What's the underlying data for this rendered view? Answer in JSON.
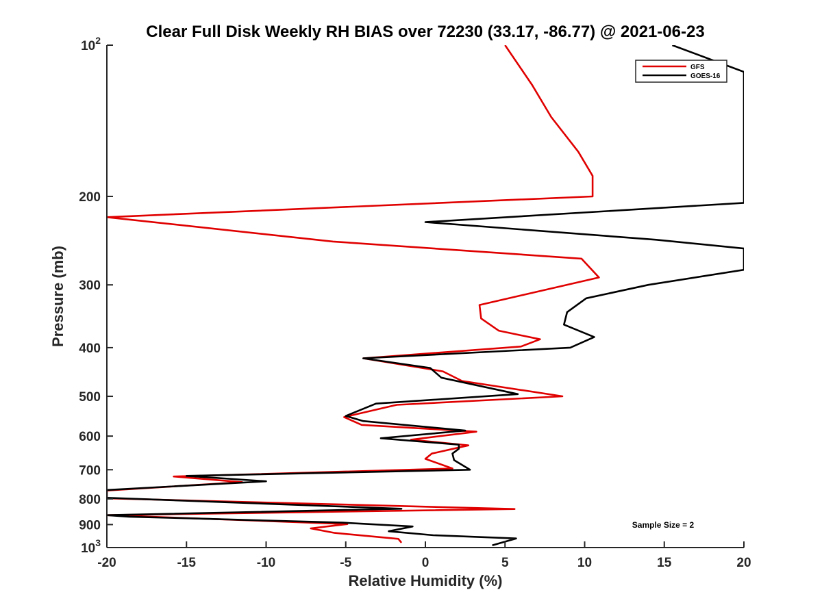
{
  "chart_data": {
    "type": "line",
    "title": "Clear Full Disk Weekly RH BIAS over 72230 (33.17, -86.77) @ 2021-06-23",
    "xlabel": "Relative Humidity (%)",
    "ylabel": "Pressure (mb)",
    "xlim": [
      -20,
      20
    ],
    "ylim": [
      100,
      1000
    ],
    "y_scale": "log",
    "y_reversed": true,
    "grid": false,
    "legend_position": "top-right",
    "x_ticks": [
      {
        "value": -20,
        "label": "-20"
      },
      {
        "value": -15,
        "label": "-15"
      },
      {
        "value": -10,
        "label": "-10"
      },
      {
        "value": -5,
        "label": "-5"
      },
      {
        "value": 0,
        "label": "0"
      },
      {
        "value": 5,
        "label": "5"
      },
      {
        "value": 10,
        "label": "10"
      },
      {
        "value": 15,
        "label": "15"
      },
      {
        "value": 20,
        "label": "20"
      }
    ],
    "y_ticks": [
      {
        "value": 100,
        "base": "10",
        "exp": "2"
      },
      {
        "value": 200,
        "label": "200"
      },
      {
        "value": 300,
        "label": "300"
      },
      {
        "value": 400,
        "label": "400"
      },
      {
        "value": 500,
        "label": "500"
      },
      {
        "value": 600,
        "label": "600"
      },
      {
        "value": 700,
        "label": "700"
      },
      {
        "value": 800,
        "label": "800"
      },
      {
        "value": 900,
        "label": "900"
      },
      {
        "value": 1000,
        "base": "10",
        "exp": "3"
      }
    ],
    "series": [
      {
        "name": "GFS",
        "color": "#e00000",
        "points": [
          [
            5.0,
            100
          ],
          [
            6.7,
            120
          ],
          [
            7.9,
            139
          ],
          [
            9.6,
            163
          ],
          [
            10.5,
            182
          ],
          [
            10.5,
            200
          ],
          [
            -20.0,
            220
          ],
          [
            -5.8,
            246
          ],
          [
            9.8,
            266
          ],
          [
            10.9,
            290
          ],
          [
            3.4,
            329
          ],
          [
            3.5,
            350
          ],
          [
            4.6,
            370
          ],
          [
            7.2,
            385
          ],
          [
            6.0,
            398
          ],
          [
            -3.9,
            420
          ],
          [
            1.1,
            446
          ],
          [
            2.3,
            466
          ],
          [
            8.6,
            500
          ],
          [
            -1.8,
            520
          ],
          [
            -5.1,
            550
          ],
          [
            -4.0,
            570
          ],
          [
            3.2,
            588
          ],
          [
            -0.9,
            610
          ],
          [
            2.7,
            626
          ],
          [
            0.4,
            650
          ],
          [
            0.0,
            666
          ],
          [
            1.7,
            696
          ],
          [
            -15.8,
            722
          ],
          [
            -11.5,
            741
          ],
          [
            -20.0,
            770
          ],
          [
            -20.0,
            798
          ],
          [
            5.6,
            838
          ],
          [
            -20.0,
            862
          ],
          [
            -13.5,
            877
          ],
          [
            -4.9,
            898
          ],
          [
            -7.2,
            916
          ],
          [
            -5.7,
            935
          ],
          [
            -1.7,
            961
          ],
          [
            -1.5,
            978
          ]
        ]
      },
      {
        "name": "GOES-16",
        "color": "#000000",
        "points": [
          [
            15.5,
            100
          ],
          [
            20.0,
            113
          ],
          [
            20.0,
            206
          ],
          [
            0.0,
            225
          ],
          [
            14.5,
            244
          ],
          [
            20.0,
            254
          ],
          [
            20.0,
            280
          ],
          [
            14.0,
            300
          ],
          [
            10.1,
            319
          ],
          [
            8.9,
            340
          ],
          [
            8.7,
            360
          ],
          [
            10.6,
            381
          ],
          [
            9.1,
            400
          ],
          [
            -3.9,
            420
          ],
          [
            0.3,
            439
          ],
          [
            1.0,
            459
          ],
          [
            5.8,
            495
          ],
          [
            -3.1,
            517
          ],
          [
            -5.0,
            547
          ],
          [
            -3.9,
            560
          ],
          [
            2.5,
            585
          ],
          [
            -2.8,
            606
          ],
          [
            2.1,
            624
          ],
          [
            2.1,
            636
          ],
          [
            1.7,
            650
          ],
          [
            1.8,
            670
          ],
          [
            2.8,
            700
          ],
          [
            -15.0,
            720
          ],
          [
            -10.0,
            738
          ],
          [
            -20.0,
            768
          ],
          [
            -20.0,
            796
          ],
          [
            -1.5,
            837
          ],
          [
            -20.0,
            862
          ],
          [
            -18.6,
            868
          ],
          [
            -5.2,
            892
          ],
          [
            -0.8,
            908
          ],
          [
            -2.3,
            928
          ],
          [
            0.5,
            945
          ],
          [
            5.7,
            959
          ],
          [
            4.2,
            990
          ]
        ]
      }
    ],
    "legend": [
      {
        "name": "GFS",
        "color": "#e00000"
      },
      {
        "name": "GOES-16",
        "color": "#000000"
      }
    ],
    "annotations": [
      {
        "text": "Sample Size = 2"
      }
    ]
  }
}
